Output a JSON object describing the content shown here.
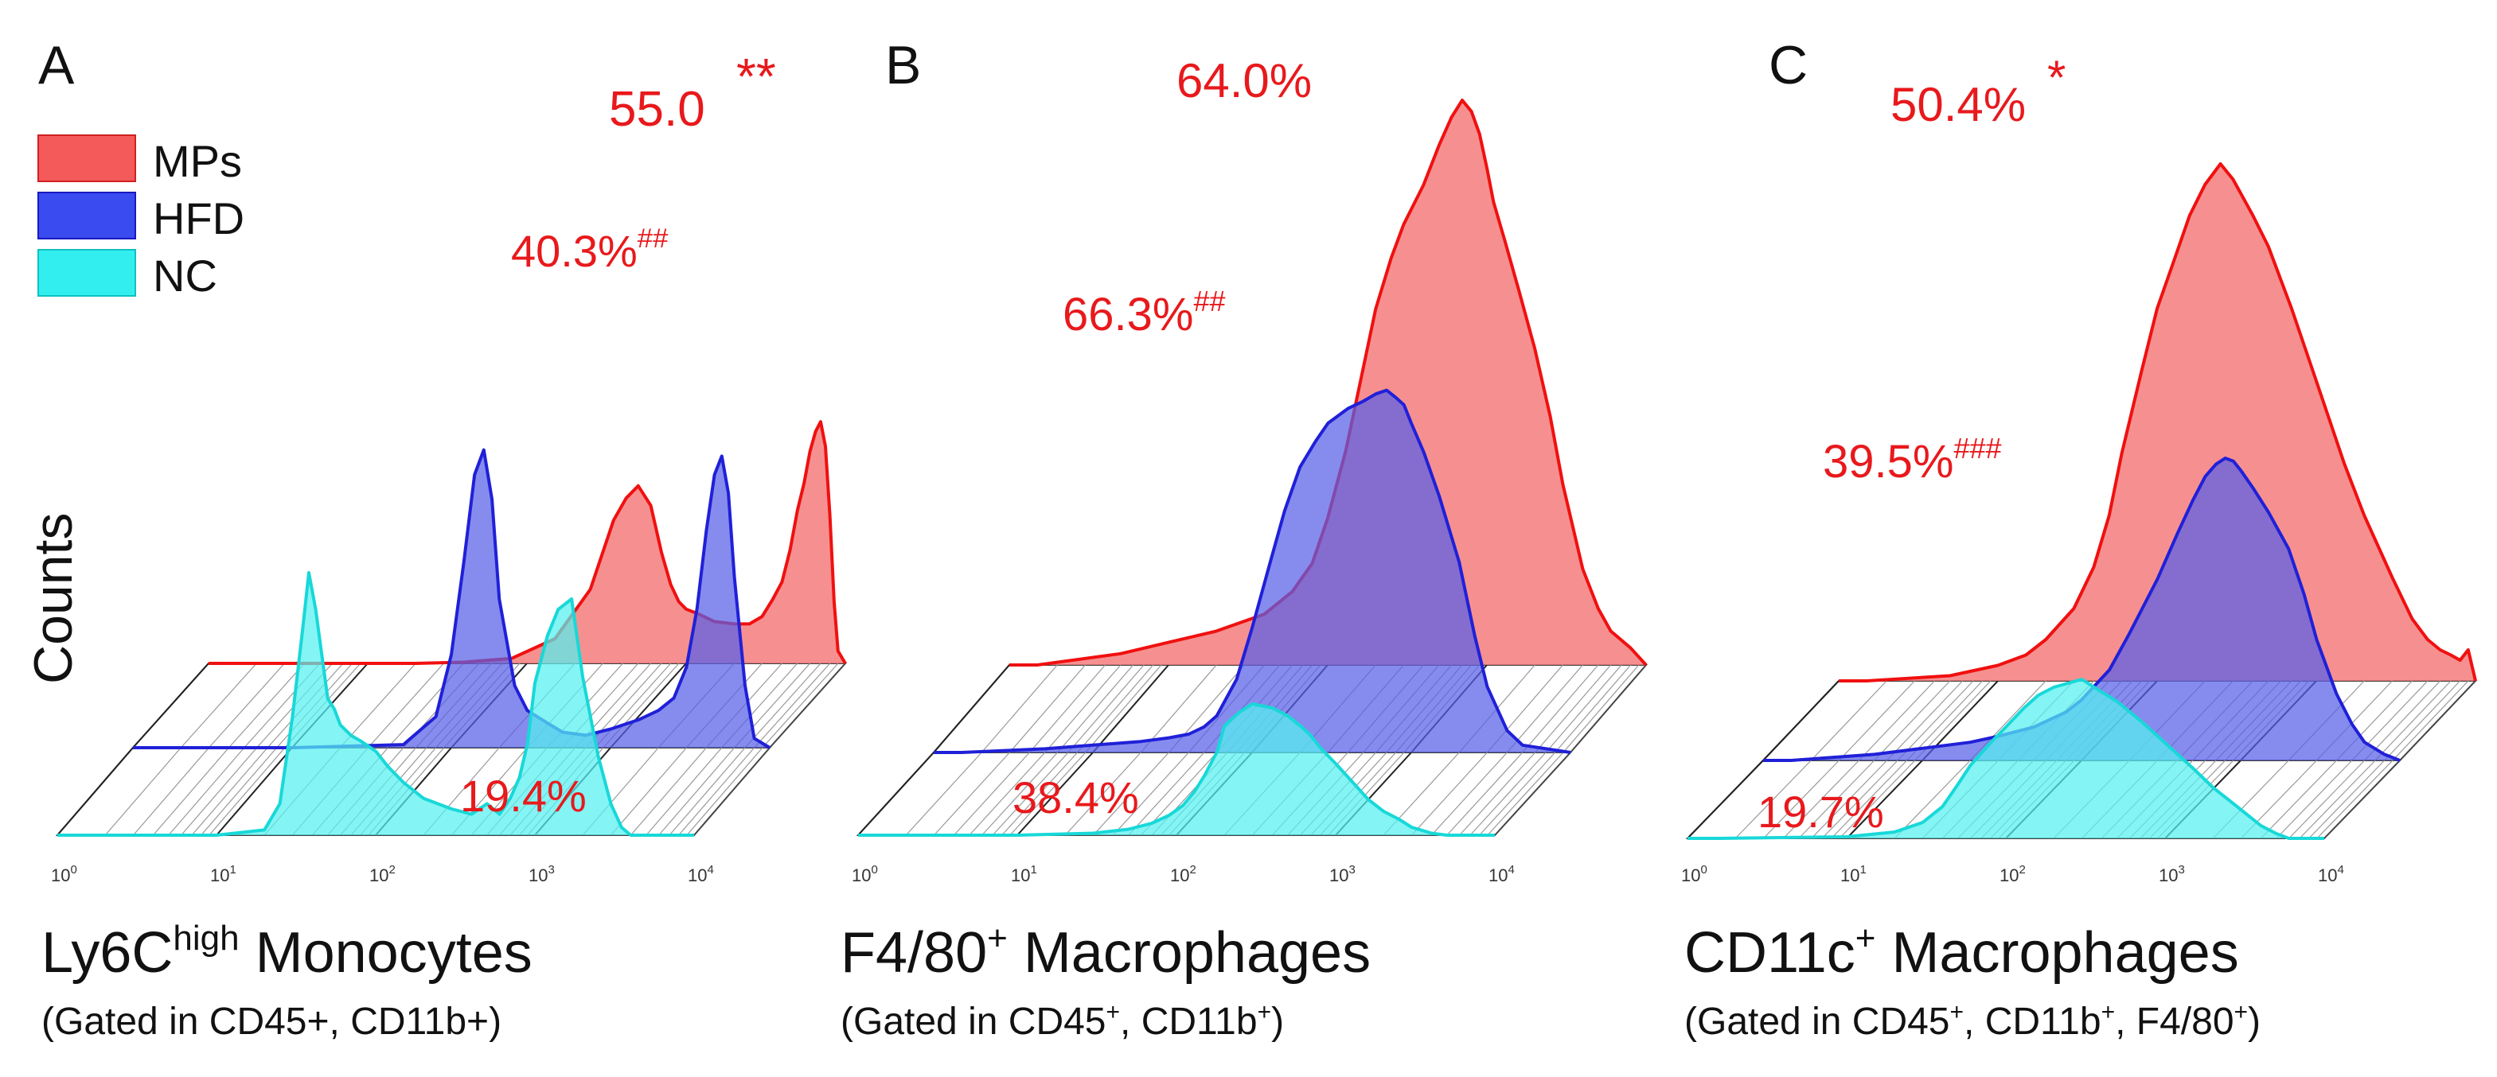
{
  "legend": [
    {
      "label": "MPs",
      "color": "#f55a5a"
    },
    {
      "label": "HFD",
      "color": "#3a4cf0"
    },
    {
      "label": "NC",
      "color": "#33eeee"
    }
  ],
  "y_axis_label": "Counts",
  "colors": {
    "red_text": "#e8191c",
    "mps_fill": "#f47c7c",
    "mps_line": "#f01010",
    "hfd_fill": "#5860e8",
    "hfd_line": "#2020d8",
    "nc_fill": "#55f0f0",
    "nc_line": "#18d8d8"
  },
  "chart_data": [
    {
      "type": "area",
      "panel": "A",
      "title": "Ly6Chigh Monocytes",
      "title_parts": [
        "Ly6C",
        "high",
        " Monocytes"
      ],
      "subtitle": "(Gated in CD45+, CD11b+)",
      "x_scale": "log",
      "xlim": [
        1,
        10000
      ],
      "x_ticks": [
        {
          "b": "10",
          "e": "0"
        },
        {
          "b": "10",
          "e": "1"
        },
        {
          "b": "10",
          "e": "2"
        },
        {
          "b": "10",
          "e": "3"
        },
        {
          "b": "10",
          "e": "4"
        }
      ],
      "series": [
        {
          "name": "MPs",
          "x": [
            1.5,
            5,
            10,
            20,
            40,
            80,
            150,
            250,
            350,
            420,
            500,
            600,
            700,
            800,
            900,
            1000,
            1200,
            1500,
            2000,
            2500,
            3000,
            3500,
            4000,
            4500,
            5000,
            5500,
            6000,
            6500,
            7000,
            7500,
            8000,
            8500,
            9000,
            10000
          ],
          "values": [
            0,
            0,
            0,
            0,
            0.5,
            2,
            10,
            30,
            58,
            67,
            72,
            64,
            45,
            32,
            25,
            22,
            20,
            17,
            16,
            16,
            19,
            26,
            33,
            46,
            62,
            73,
            86,
            94,
            98,
            88,
            60,
            25,
            5,
            0
          ]
        },
        {
          "name": "HFD",
          "x": [
            1.5,
            10,
            50,
            80,
            100,
            120,
            140,
            160,
            180,
            200,
            250,
            300,
            400,
            500,
            700,
            1000,
            1500,
            2000,
            2500,
            3000,
            3500,
            4000,
            4500,
            5000,
            5500,
            6000,
            7000,
            8000,
            10000
          ],
          "values": [
            0,
            0,
            1,
            10,
            30,
            60,
            88,
            96,
            80,
            48,
            20,
            12,
            8,
            5,
            4,
            6,
            9,
            12,
            16,
            26,
            45,
            70,
            88,
            94,
            82,
            55,
            20,
            3,
            0
          ]
        },
        {
          "name": "NC",
          "x": [
            1.5,
            10,
            20,
            25,
            30,
            35,
            38,
            42,
            46,
            50,
            55,
            60,
            70,
            80,
            100,
            120,
            150,
            200,
            300,
            400,
            500,
            600,
            700,
            800,
            900,
            1000,
            1200,
            1400,
            1700,
            2000,
            2500,
            3000,
            3500,
            4000
          ],
          "values": [
            0,
            0,
            2,
            12,
            45,
            80,
            100,
            86,
            68,
            52,
            48,
            42,
            38,
            36,
            32,
            26,
            20,
            14,
            10,
            8,
            12,
            8,
            14,
            22,
            35,
            58,
            76,
            86,
            90,
            60,
            30,
            12,
            3,
            0
          ]
        }
      ],
      "annotations": [
        {
          "series": "MPs",
          "text": "55.0",
          "sup": "",
          "mark": "**"
        },
        {
          "series": "HFD",
          "text": "40.3%",
          "sup": "##",
          "mark": ""
        },
        {
          "series": "NC",
          "text": "19.4%",
          "sup": "",
          "mark": ""
        }
      ]
    },
    {
      "type": "area",
      "panel": "B",
      "title": "F4/80+ Macrophages",
      "title_parts": [
        "F4/80",
        "+",
        " Macrophages"
      ],
      "subtitle": "(Gated in CD45+, CD11b+)",
      "subtitle_parts": [
        "(Gated in CD45",
        "+",
        ", CD11b",
        "+",
        ")"
      ],
      "x_scale": "log",
      "xlim": [
        1,
        10000
      ],
      "x_ticks": [
        {
          "b": "10",
          "e": "0"
        },
        {
          "b": "10",
          "e": "1"
        },
        {
          "b": "10",
          "e": "2"
        },
        {
          "b": "10",
          "e": "3"
        },
        {
          "b": "10",
          "e": "4"
        }
      ],
      "series": [
        {
          "name": "MPs",
          "x": [
            1.5,
            5,
            10,
            20,
            40,
            60,
            80,
            100,
            130,
            160,
            200,
            250,
            300,
            400,
            500,
            600,
            700,
            800,
            900,
            1000,
            1100,
            1300,
            1600,
            2000,
            2500,
            3000,
            4000,
            5000,
            6000,
            8000,
            10000
          ],
          "values": [
            0,
            2,
            4,
            6,
            9,
            13,
            18,
            26,
            38,
            50,
            63,
            72,
            78,
            85,
            92,
            97,
            100,
            98,
            94,
            88,
            82,
            75,
            66,
            56,
            44,
            32,
            17,
            10,
            6,
            3,
            0
          ]
        },
        {
          "name": "HFD",
          "x": [
            1.5,
            5,
            10,
            20,
            30,
            40,
            50,
            60,
            80,
            100,
            130,
            160,
            200,
            250,
            300,
            400,
            500,
            600,
            700,
            800,
            900,
            1000,
            1200,
            1500,
            2000,
            2500,
            3000,
            4000,
            5000,
            10000
          ],
          "values": [
            0,
            1,
            2,
            3,
            4,
            5,
            7,
            10,
            20,
            34,
            52,
            66,
            78,
            85,
            90,
            94,
            96,
            98,
            99,
            97,
            95,
            90,
            82,
            70,
            52,
            32,
            18,
            6,
            2,
            0
          ]
        },
        {
          "name": "NC",
          "x": [
            1.5,
            10,
            30,
            50,
            70,
            90,
            110,
            130,
            150,
            180,
            200,
            250,
            300,
            400,
            500,
            600,
            700,
            800,
            1000,
            1300,
            1600,
            2000,
            2500,
            3000,
            4000,
            5000
          ],
          "values": [
            0,
            0,
            1,
            3,
            6,
            10,
            15,
            22,
            30,
            42,
            55,
            62,
            66,
            64,
            60,
            55,
            50,
            44,
            36,
            26,
            18,
            12,
            8,
            4,
            1,
            0
          ]
        }
      ],
      "annotations": [
        {
          "series": "MPs",
          "text": "64.0%",
          "sup": "",
          "mark": ""
        },
        {
          "series": "HFD",
          "text": "66.3%",
          "sup": "##",
          "mark": ""
        },
        {
          "series": "NC",
          "text": "38.4%",
          "sup": "",
          "mark": ""
        }
      ]
    },
    {
      "type": "area",
      "panel": "C",
      "title": "CD11c+ Macrophages",
      "title_parts": [
        "CD11c",
        "+",
        " Macrophages"
      ],
      "subtitle": "(Gated in CD45+, CD11b+, F4/80+)",
      "subtitle_parts": [
        "(Gated in CD45",
        "+",
        ", CD11b",
        "+",
        ", F4/80",
        "+",
        ")"
      ],
      "x_scale": "log",
      "xlim": [
        1,
        10000
      ],
      "x_ticks": [
        {
          "b": "10",
          "e": "0"
        },
        {
          "b": "10",
          "e": "1"
        },
        {
          "b": "10",
          "e": "2"
        },
        {
          "b": "10",
          "e": "3"
        },
        {
          "b": "10",
          "e": "4"
        }
      ],
      "series": [
        {
          "name": "MPs",
          "x": [
            1.5,
            5,
            10,
            15,
            20,
            30,
            40,
            50,
            60,
            80,
            100,
            130,
            160,
            200,
            250,
            300,
            400,
            500,
            700,
            1000,
            1500,
            2000,
            3000,
            4000,
            5000,
            6000,
            7000,
            8000,
            9000,
            10000
          ],
          "values": [
            0,
            1,
            3,
            5,
            8,
            14,
            22,
            32,
            44,
            60,
            72,
            82,
            90,
            96,
            100,
            97,
            90,
            84,
            72,
            58,
            42,
            32,
            20,
            12,
            8,
            6,
            5,
            4,
            6,
            0
          ]
        },
        {
          "name": "HFD",
          "x": [
            1.5,
            5,
            10,
            20,
            30,
            50,
            80,
            100,
            150,
            200,
            300,
            400,
            500,
            600,
            700,
            800,
            900,
            1000,
            1200,
            1500,
            2000,
            2500,
            3000,
            4000,
            5000,
            6000,
            8000,
            10000
          ],
          "values": [
            0,
            2,
            4,
            6,
            8,
            11,
            16,
            20,
            30,
            42,
            60,
            75,
            86,
            94,
            98,
            100,
            99,
            96,
            90,
            82,
            70,
            55,
            40,
            22,
            12,
            6,
            2,
            0
          ]
        },
        {
          "name": "NC",
          "x": [
            1.5,
            10,
            20,
            30,
            40,
            50,
            60,
            80,
            100,
            130,
            160,
            200,
            300,
            400,
            500,
            700,
            1000,
            1500,
            2000,
            3000,
            4000,
            5000,
            6000
          ],
          "values": [
            0,
            1,
            4,
            10,
            20,
            34,
            46,
            60,
            70,
            82,
            90,
            95,
            100,
            92,
            86,
            74,
            60,
            44,
            32,
            18,
            8,
            3,
            0
          ]
        }
      ],
      "annotations": [
        {
          "series": "MPs",
          "text": "50.4%",
          "sup": "",
          "mark": "*"
        },
        {
          "series": "HFD",
          "text": "39.5%",
          "sup": "###",
          "mark": ""
        },
        {
          "series": "NC",
          "text": "19.7%",
          "sup": "",
          "mark": ""
        }
      ]
    }
  ]
}
